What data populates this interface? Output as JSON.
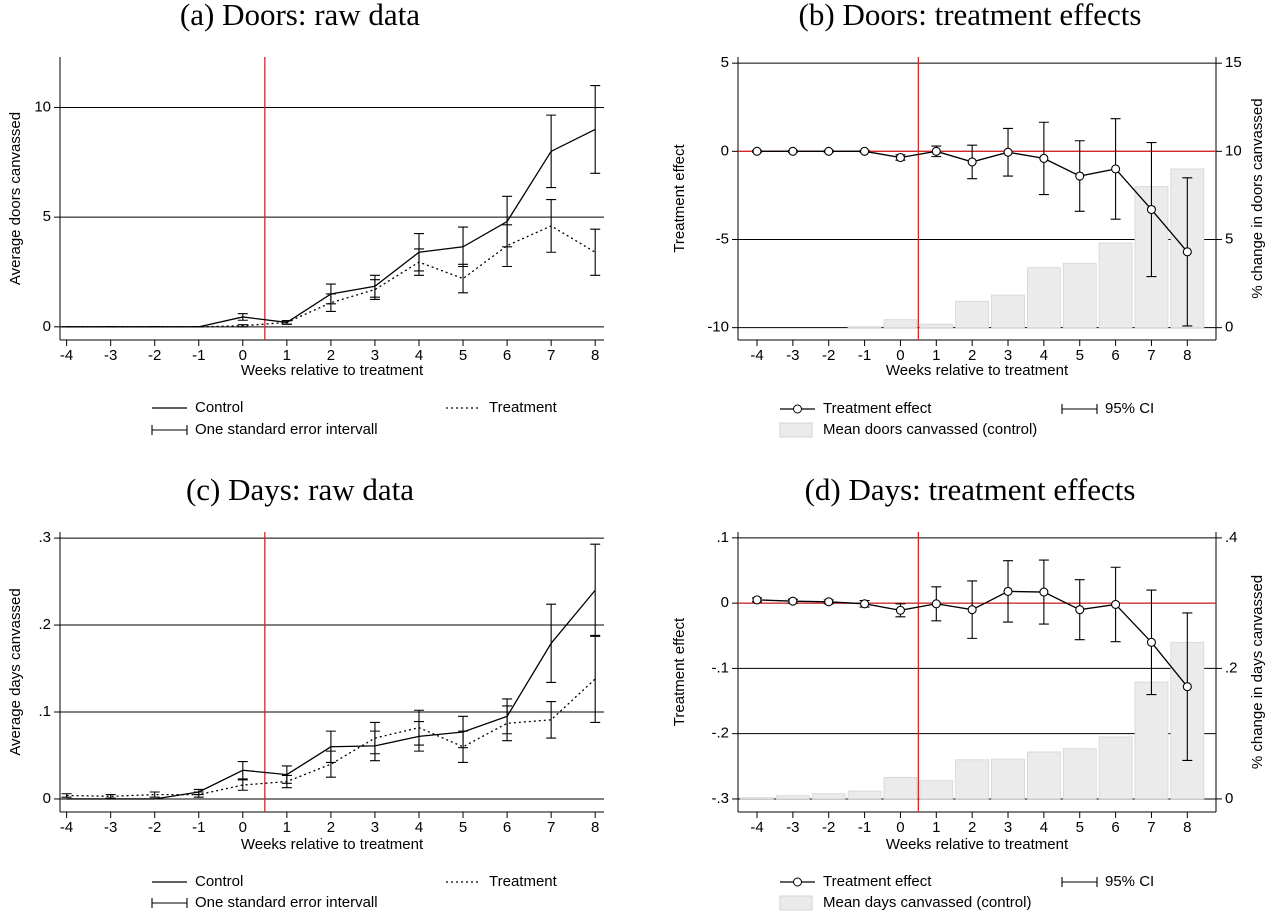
{
  "chart_data": [
    {
      "type": "line",
      "title": "(a) Doors: raw data",
      "x_label": "Weeks relative to treatment",
      "y_label": "Average doors canvassed",
      "x": [
        -4,
        -3,
        -2,
        -1,
        0,
        1,
        2,
        3,
        4,
        5,
        6,
        7,
        8
      ],
      "xlim": [
        -4.15,
        8.2
      ],
      "xticks": [
        -4,
        -3,
        -2,
        -1,
        0,
        1,
        2,
        3,
        4,
        5,
        6,
        7,
        8
      ],
      "ylim": [
        -0.6,
        12.3
      ],
      "yticks": [
        0,
        5,
        10
      ],
      "grid": true,
      "vline": 0.5,
      "error_label": "One standard error intervall",
      "series": [
        {
          "name": "Control",
          "color": "#000000",
          "style": "solid",
          "values": [
            0,
            0,
            0,
            0,
            0.45,
            0.2,
            1.5,
            1.85,
            3.4,
            3.65,
            4.8,
            8.0,
            9.0
          ],
          "errors": [
            0,
            0,
            0,
            0,
            0.15,
            0.08,
            0.45,
            0.5,
            0.85,
            0.9,
            1.15,
            1.65,
            2.0
          ]
        },
        {
          "name": "Treatment",
          "color": "#000000",
          "style": "dotted",
          "values": [
            0,
            0,
            0,
            0,
            0.05,
            0.2,
            1.1,
            1.7,
            2.95,
            2.2,
            3.7,
            4.6,
            3.4
          ],
          "errors": [
            0,
            0,
            0,
            0,
            0.05,
            0.08,
            0.4,
            0.45,
            0.6,
            0.65,
            0.95,
            1.2,
            1.05
          ]
        }
      ]
    },
    {
      "type": "line",
      "title": "(b) Doors: treatment effects",
      "x_label": "Weeks relative to treatment",
      "y_label": "Treatment effect",
      "y2_label": "% change in doors canvassed",
      "x": [
        -4,
        -3,
        -2,
        -1,
        0,
        1,
        2,
        3,
        4,
        5,
        6,
        7,
        8
      ],
      "xlim": [
        -4.53,
        8.8
      ],
      "xticks": [
        -4,
        -3,
        -2,
        -1,
        0,
        1,
        2,
        3,
        4,
        5,
        6,
        7,
        8
      ],
      "ylim": [
        -10.7,
        5.35
      ],
      "yticks": [
        -10,
        -5,
        0,
        5
      ],
      "y2lim": [
        -0.7,
        15.35
      ],
      "y2ticks": [
        0,
        5,
        10,
        15
      ],
      "grid": true,
      "vline": 0.5,
      "hline": 0,
      "error_label": "95% CI",
      "series": [
        {
          "name": "Treatment effect",
          "color": "#000000",
          "style": "solid",
          "marker": "circle",
          "values": [
            0,
            0,
            0,
            0,
            -0.35,
            0,
            -0.6,
            -0.05,
            -0.4,
            -1.4,
            -1.0,
            -3.3,
            -5.7
          ],
          "errors": [
            0.05,
            0.05,
            0.05,
            0.05,
            0.15,
            0.3,
            0.95,
            1.35,
            2.05,
            2.0,
            2.85,
            3.8,
            4.2
          ]
        },
        {
          "name": "Mean doors canvassed (control)",
          "type": "bar",
          "axis": "y2",
          "color": "#ebebeb",
          "values": [
            0,
            0,
            0,
            0.05,
            0.45,
            0.2,
            1.5,
            1.85,
            3.4,
            3.65,
            4.8,
            8.0,
            9.0
          ]
        }
      ]
    },
    {
      "type": "line",
      "title": "(c) Days: raw data",
      "x_label": "Weeks relative to treatment",
      "y_label": "Average days canvassed",
      "x": [
        -4,
        -3,
        -2,
        -1,
        0,
        1,
        2,
        3,
        4,
        5,
        6,
        7,
        8
      ],
      "xlim": [
        -4.15,
        8.2
      ],
      "xticks": [
        -4,
        -3,
        -2,
        -1,
        0,
        1,
        2,
        3,
        4,
        5,
        6,
        7,
        8
      ],
      "ylim": [
        -0.015,
        0.307
      ],
      "yticks": [
        0,
        {
          "value": 0.1,
          "label": ".1"
        },
        {
          "value": 0.2,
          "label": ".2"
        },
        {
          "value": 0.3,
          "label": ".3"
        }
      ],
      "grid": true,
      "vline": 0.5,
      "error_label": "One standard error intervall",
      "series": [
        {
          "name": "Control",
          "color": "#000000",
          "style": "solid",
          "values": [
            0,
            0,
            0,
            0.008,
            0.033,
            0.028,
            0.06,
            0.061,
            0.072,
            0.077,
            0.095,
            0.179,
            0.24
          ],
          "errors": [
            0,
            0,
            0,
            0.003,
            0.01,
            0.01,
            0.018,
            0.017,
            0.017,
            0.018,
            0.02,
            0.045,
            0.053
          ]
        },
        {
          "name": "Treatment",
          "color": "#000000",
          "style": "dotted",
          "values": [
            0.004,
            0.003,
            0.005,
            0.005,
            0.016,
            0.02,
            0.04,
            0.07,
            0.082,
            0.06,
            0.087,
            0.091,
            0.138
          ],
          "errors": [
            0.002,
            0.002,
            0.003,
            0.003,
            0.006,
            0.007,
            0.015,
            0.018,
            0.02,
            0.018,
            0.02,
            0.021,
            0.05
          ]
        }
      ]
    },
    {
      "type": "line",
      "title": "(d) Days: treatment effects",
      "x_label": "Weeks relative to treatment",
      "y_label": "Treatment effect",
      "y2_label": "% change in days canvassed",
      "x": [
        -4,
        -3,
        -2,
        -1,
        0,
        1,
        2,
        3,
        4,
        5,
        6,
        7,
        8
      ],
      "xlim": [
        -4.53,
        8.8
      ],
      "xticks": [
        -4,
        -3,
        -2,
        -1,
        0,
        1,
        2,
        3,
        4,
        5,
        6,
        7,
        8
      ],
      "ylim": [
        -0.32,
        0.109
      ],
      "yticks": [
        {
          "value": -0.3,
          "label": "-.3"
        },
        {
          "value": -0.2,
          "label": "-.2"
        },
        {
          "value": -0.1,
          "label": "-.1"
        },
        0,
        {
          "value": 0.1,
          "label": ".1"
        }
      ],
      "y2lim": [
        -0.02,
        0.409
      ],
      "y2ticks": [
        0,
        {
          "value": 0.2,
          "label": ".2"
        },
        {
          "value": 0.4,
          "label": ".4"
        }
      ],
      "grid": true,
      "vline": 0.5,
      "hline": 0,
      "error_label": "95% CI",
      "series": [
        {
          "name": "Treatment effect",
          "color": "#000000",
          "style": "solid",
          "marker": "circle",
          "values": [
            0.005,
            0.003,
            0.002,
            -0.001,
            -0.011,
            -0.001,
            -0.01,
            0.018,
            0.017,
            -0.01,
            -0.002,
            -0.06,
            -0.128
          ],
          "errors": [
            0.003,
            0.003,
            0.003,
            0.005,
            0.01,
            0.026,
            0.044,
            0.047,
            0.049,
            0.046,
            0.057,
            0.08,
            0.113
          ]
        },
        {
          "name": "Mean days canvassed (control)",
          "type": "bar",
          "axis": "y2",
          "color": "#ebebeb",
          "values": [
            0.002,
            0.005,
            0.008,
            0.012,
            0.033,
            0.028,
            0.06,
            0.061,
            0.072,
            0.077,
            0.095,
            0.179,
            0.24
          ]
        }
      ]
    }
  ]
}
